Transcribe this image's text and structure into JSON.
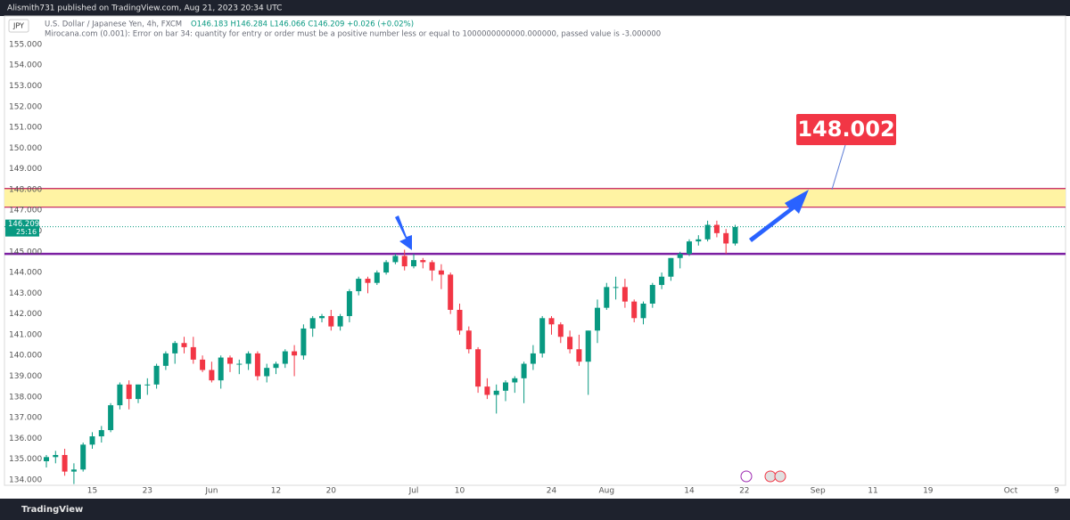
{
  "header": {
    "published": "Alismith731 published on TradingView.com, Aug 21, 2023 20:34 UTC"
  },
  "footer": {
    "brand": "TradingView"
  },
  "chart_data": {
    "type": "candlestick",
    "ticker": "JPY",
    "title": "U.S. Dollar / Japanese Yen, 4h, FXCM",
    "ohlc_text": "O146.183 H146.284 L146.066 C146.209 +0.026 (+0.02%)",
    "indicator_text": "Mirocana.com (0.001): Error on bar 34: quantity for entry or order must be a positive number less or equal to 1000000000000.000000, passed value is -3.000000",
    "categories": [
      null,
      null,
      null,
      null,
      null,
      "15",
      null,
      null,
      null,
      null,
      null,
      "23",
      null,
      null,
      null,
      null,
      null,
      null,
      "Jun",
      null,
      null,
      null,
      null,
      null,
      null,
      "12",
      null,
      null,
      null,
      null,
      null,
      "20",
      null,
      null,
      null,
      null,
      null,
      null,
      null,
      null,
      "Jul",
      null,
      null,
      null,
      null,
      "10",
      null,
      null,
      null,
      null,
      null,
      null,
      null,
      null,
      null,
      "24",
      null,
      null,
      null,
      null,
      null,
      "Aug",
      null,
      null,
      null,
      null,
      null,
      null,
      null,
      null,
      "14",
      null,
      null,
      null,
      null,
      null,
      "22",
      null,
      null,
      null,
      null,
      null,
      null,
      null,
      "Sep",
      null,
      null,
      null,
      null,
      null,
      "11",
      null,
      null,
      null,
      null,
      null,
      "19",
      null,
      null,
      null,
      null,
      null,
      null,
      null,
      null,
      "Oct",
      null,
      null,
      null,
      null,
      "9"
    ],
    "open": [
      134.9,
      135.1,
      135.2,
      134.4,
      134.5,
      135.7,
      136.1,
      136.4,
      137.6,
      138.6,
      137.9,
      138.6,
      138.6,
      139.5,
      140.1,
      140.6,
      140.4,
      139.8,
      139.3,
      138.8,
      139.9,
      139.6,
      139.6,
      140.1,
      139.0,
      139.4,
      139.6,
      140.2,
      140.0,
      141.3,
      141.8,
      141.9,
      141.4,
      141.9,
      143.1,
      143.7,
      143.5,
      144.0,
      144.5,
      144.8,
      144.3,
      144.6,
      144.5,
      144.1,
      143.9,
      142.2,
      141.2,
      140.3,
      138.5,
      138.1,
      138.3,
      138.7,
      138.9,
      139.6,
      140.1,
      141.8,
      141.5,
      140.9,
      140.3,
      139.7,
      141.2,
      142.3,
      143.3,
      143.3,
      142.6,
      141.8,
      142.5,
      143.4,
      143.8,
      144.7,
      144.9,
      145.5,
      145.6,
      146.3,
      145.9,
      145.4,
      null,
      null,
      null,
      null,
      null,
      null,
      null,
      null,
      null,
      null,
      null,
      null,
      null,
      null,
      null,
      null,
      null,
      null,
      null,
      null,
      null,
      null,
      null,
      null,
      null,
      null,
      null,
      null,
      null,
      null,
      null,
      null,
      null,
      null,
      null
    ],
    "high": [
      135.2,
      135.4,
      135.5,
      134.8,
      135.8,
      136.3,
      136.6,
      137.7,
      138.7,
      138.8,
      138.6,
      138.9,
      139.6,
      140.2,
      140.7,
      140.9,
      140.9,
      140.0,
      139.7,
      140.0,
      140.0,
      139.8,
      140.2,
      140.2,
      139.6,
      139.7,
      140.3,
      140.5,
      141.5,
      141.9,
      142.0,
      142.2,
      142.0,
      143.2,
      143.8,
      143.8,
      144.1,
      144.6,
      144.9,
      145.1,
      144.9,
      144.7,
      144.6,
      144.4,
      144.0,
      142.5,
      141.4,
      140.4,
      138.9,
      138.6,
      138.8,
      139.0,
      139.7,
      140.5,
      141.9,
      141.9,
      141.6,
      141.2,
      141.0,
      141.2,
      142.7,
      143.5,
      143.8,
      143.7,
      142.7,
      142.6,
      143.5,
      144.0,
      144.7,
      145.0,
      145.6,
      145.8,
      146.5,
      146.5,
      146.1,
      146.3,
      null,
      null,
      null,
      null,
      null,
      null,
      null,
      null,
      null,
      null,
      null,
      null,
      null,
      null,
      null,
      null,
      null,
      null,
      null,
      null,
      null,
      null,
      null,
      null,
      null,
      null,
      null,
      null,
      null,
      null,
      null,
      null,
      null,
      null,
      null
    ],
    "low": [
      134.6,
      134.8,
      134.2,
      133.8,
      134.4,
      135.5,
      135.8,
      136.3,
      137.4,
      137.4,
      137.7,
      138.1,
      138.4,
      139.3,
      139.6,
      140.1,
      139.6,
      139.2,
      138.7,
      138.4,
      139.2,
      139.1,
      139.3,
      138.8,
      138.7,
      139.1,
      139.4,
      139.0,
      139.8,
      140.9,
      141.6,
      141.2,
      141.2,
      141.6,
      142.9,
      143.0,
      143.4,
      143.9,
      144.4,
      144.1,
      144.2,
      144.2,
      143.6,
      143.2,
      142.0,
      141.0,
      140.1,
      138.2,
      137.9,
      137.2,
      137.8,
      138.2,
      137.7,
      139.3,
      139.9,
      141.0,
      140.6,
      140.1,
      139.5,
      138.1,
      140.6,
      142.2,
      142.7,
      142.3,
      141.6,
      141.5,
      142.3,
      143.2,
      143.6,
      144.2,
      144.8,
      145.3,
      145.5,
      145.7,
      144.9,
      145.3,
      null,
      null,
      null,
      null,
      null,
      null,
      null,
      null,
      null,
      null,
      null,
      null,
      null,
      null,
      null,
      null,
      null,
      null,
      null,
      null,
      null,
      null,
      null,
      null,
      null,
      null,
      null,
      null,
      null,
      null,
      null,
      null,
      null,
      null,
      null
    ],
    "close": [
      135.1,
      135.2,
      134.4,
      134.5,
      135.7,
      136.1,
      136.4,
      137.6,
      138.6,
      137.9,
      138.6,
      138.6,
      139.5,
      140.1,
      140.6,
      140.4,
      139.8,
      139.3,
      138.8,
      139.9,
      139.6,
      139.6,
      140.1,
      139.0,
      139.4,
      139.6,
      140.2,
      140.0,
      141.3,
      141.8,
      141.9,
      141.4,
      141.9,
      143.1,
      143.7,
      143.5,
      144.0,
      144.5,
      144.8,
      144.3,
      144.6,
      144.5,
      144.1,
      143.9,
      142.2,
      141.2,
      140.3,
      138.5,
      138.1,
      138.3,
      138.7,
      138.9,
      139.6,
      140.1,
      141.8,
      141.5,
      140.9,
      140.3,
      139.7,
      141.2,
      142.3,
      143.3,
      143.3,
      142.6,
      141.8,
      142.5,
      143.4,
      143.8,
      144.7,
      144.9,
      145.5,
      145.6,
      146.3,
      145.9,
      145.4,
      146.2,
      null,
      null,
      null,
      null,
      null,
      null,
      null,
      null,
      null,
      null,
      null,
      null,
      null,
      null,
      null,
      null,
      null,
      null,
      null,
      null,
      null,
      null,
      null,
      null,
      null,
      null,
      null,
      null,
      null,
      null,
      null,
      null,
      null,
      null,
      null
    ],
    "up_color": "#089981",
    "down_color": "#f23645",
    "ylim": [
      133.74,
      156.37
    ],
    "yticks": [
      {
        "value": 134,
        "label": "134.000"
      },
      {
        "value": 135,
        "label": "135.000"
      },
      {
        "value": 136,
        "label": "136.000"
      },
      {
        "value": 137,
        "label": "137.000"
      },
      {
        "value": 138,
        "label": "138.000"
      },
      {
        "value": 139,
        "label": "139.000"
      },
      {
        "value": 140,
        "label": "140.000"
      },
      {
        "value": 141,
        "label": "141.000"
      },
      {
        "value": 142,
        "label": "142.000"
      },
      {
        "value": 143,
        "label": "143.000"
      },
      {
        "value": 144,
        "label": "144.000"
      },
      {
        "value": 145,
        "label": "145.000"
      },
      {
        "value": 146,
        "label": "146.000"
      },
      {
        "value": 147,
        "label": "147.000"
      },
      {
        "value": 148,
        "label": "148.000"
      },
      {
        "value": 149,
        "label": "149.000"
      },
      {
        "value": 150,
        "label": "150.000"
      },
      {
        "value": 151,
        "label": "151.000"
      },
      {
        "value": 152,
        "label": "152.000"
      },
      {
        "value": 153,
        "label": "153.000"
      },
      {
        "value": 154,
        "label": "154.000"
      },
      {
        "value": 155,
        "label": "155.000"
      }
    ],
    "grid": false,
    "last_price": 146.209,
    "countdown": "25:16",
    "last_price_color": "#089981",
    "zone": [
      147.15,
      148.05
    ],
    "zone_color": "#fff3a3",
    "zone_border": "#c2185b",
    "support_line": 144.9,
    "support_color": "#7b1fa2",
    "target": 148.002,
    "target_color": "#f23645"
  }
}
